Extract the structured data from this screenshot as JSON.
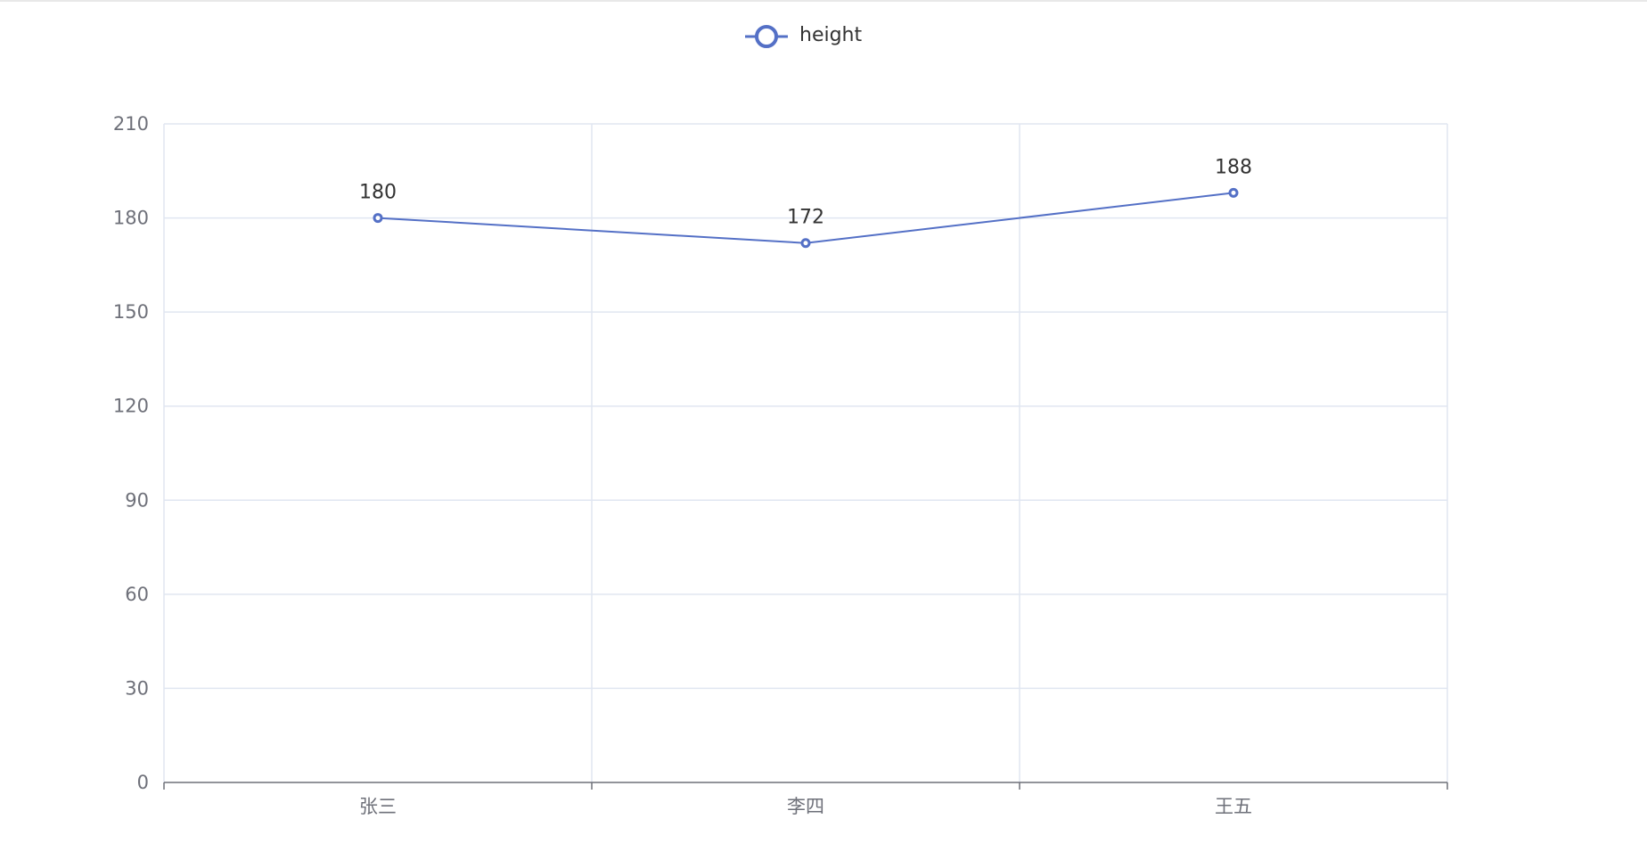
{
  "chart_data": {
    "type": "line",
    "categories": [
      "张三",
      "李四",
      "王五"
    ],
    "series": [
      {
        "name": "height",
        "values": [
          180,
          172,
          188
        ]
      }
    ],
    "ylim": [
      0,
      210
    ],
    "yticks": [
      0,
      30,
      60,
      90,
      120,
      150,
      180,
      210
    ],
    "grid": true,
    "legend": "top-center",
    "show_data_labels": true,
    "colors": {
      "series": "#5470c6",
      "grid": "#e0e6f1",
      "axis": "#6e7079",
      "label": "#333333",
      "tick_label": "#6e7079"
    }
  }
}
